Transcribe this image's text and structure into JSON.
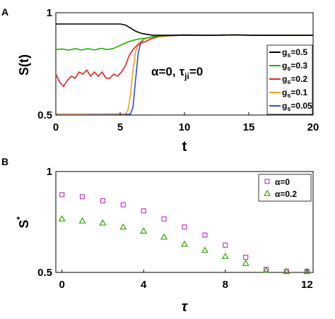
{
  "chart_data": [
    {
      "panel": "A",
      "type": "line",
      "xlabel": "t",
      "ylabel": "S(t)",
      "xlim": [
        0,
        20
      ],
      "ylim": [
        0.5,
        1
      ],
      "xticks": [
        "0",
        "5",
        "10",
        "15",
        "20"
      ],
      "yticks": [
        "0.5",
        "1"
      ],
      "annotation": "α=0, τji=0",
      "annotation_parts": {
        "alpha": "α=0,",
        "tau": "τ",
        "sub": "ji",
        "rest": "=0"
      },
      "legend_placement": "right",
      "series": [
        {
          "name": "gs=0.5",
          "label_main": "g",
          "label_sub": "s",
          "label_rest": "=0.5",
          "color": "#000000",
          "points": [
            [
              0,
              0.945
            ],
            [
              5.0,
              0.945
            ],
            [
              5.4,
              0.94
            ],
            [
              5.8,
              0.925
            ],
            [
              6.2,
              0.91
            ],
            [
              6.6,
              0.9
            ],
            [
              7.0,
              0.895
            ],
            [
              7.5,
              0.89
            ],
            [
              8,
              0.89
            ],
            [
              9,
              0.89
            ],
            [
              10,
              0.891
            ],
            [
              12,
              0.89
            ],
            [
              14,
              0.891
            ],
            [
              16,
              0.89
            ],
            [
              18,
              0.89
            ],
            [
              20,
              0.89
            ]
          ]
        },
        {
          "name": "gs=0.3",
          "label_main": "g",
          "label_sub": "s",
          "label_rest": "=0.3",
          "color": "#1fb000",
          "points": [
            [
              0,
              0.82
            ],
            [
              0.5,
              0.823
            ],
            [
              1,
              0.817
            ],
            [
              1.5,
              0.824
            ],
            [
              2,
              0.818
            ],
            [
              2.5,
              0.824
            ],
            [
              3,
              0.818
            ],
            [
              3.5,
              0.826
            ],
            [
              4,
              0.82
            ],
            [
              4.5,
              0.826
            ],
            [
              5.0,
              0.84
            ],
            [
              5.5,
              0.855
            ],
            [
              6.0,
              0.865
            ],
            [
              6.5,
              0.872
            ],
            [
              7.0,
              0.876
            ],
            [
              7.5,
              0.882
            ],
            [
              8,
              0.886
            ],
            [
              9,
              0.889
            ],
            [
              10,
              0.89
            ],
            [
              12,
              0.89
            ],
            [
              14,
              0.891
            ],
            [
              16,
              0.889
            ],
            [
              18,
              0.89
            ],
            [
              20,
              0.89
            ]
          ]
        },
        {
          "name": "gs=0.2",
          "label_main": "g",
          "label_sub": "s",
          "label_rest": "=0.2",
          "color": "#e81e1e",
          "points": [
            [
              0,
              0.7
            ],
            [
              0.3,
              0.66
            ],
            [
              0.6,
              0.64
            ],
            [
              0.9,
              0.67
            ],
            [
              1.2,
              0.69
            ],
            [
              1.5,
              0.68
            ],
            [
              1.8,
              0.71
            ],
            [
              2.1,
              0.7
            ],
            [
              2.4,
              0.72
            ],
            [
              2.7,
              0.69
            ],
            [
              3.0,
              0.71
            ],
            [
              3.3,
              0.69
            ],
            [
              3.6,
              0.71
            ],
            [
              3.9,
              0.68
            ],
            [
              4.2,
              0.68
            ],
            [
              4.5,
              0.7
            ],
            [
              4.8,
              0.69
            ],
            [
              5.1,
              0.71
            ],
            [
              5.4,
              0.74
            ],
            [
              5.7,
              0.79
            ],
            [
              6.0,
              0.82
            ],
            [
              6.3,
              0.84
            ],
            [
              6.6,
              0.85
            ],
            [
              7.0,
              0.86
            ],
            [
              7.5,
              0.875
            ],
            [
              8,
              0.883
            ],
            [
              9,
              0.888
            ],
            [
              10,
              0.89
            ],
            [
              12,
              0.89
            ],
            [
              14,
              0.891
            ],
            [
              16,
              0.889
            ],
            [
              18,
              0.89
            ],
            [
              20,
              0.89
            ]
          ]
        },
        {
          "name": "gs=0.1",
          "label_main": "g",
          "label_sub": "s",
          "label_rest": "=0.1",
          "color": "#f2a11c",
          "points": [
            [
              0,
              0.505
            ],
            [
              2,
              0.505
            ],
            [
              4,
              0.506
            ],
            [
              5.4,
              0.506
            ],
            [
              5.6,
              0.52
            ],
            [
              5.8,
              0.6
            ],
            [
              6.0,
              0.72
            ],
            [
              6.2,
              0.81
            ],
            [
              6.4,
              0.85
            ],
            [
              6.8,
              0.87
            ],
            [
              7.5,
              0.882
            ],
            [
              8.5,
              0.887
            ],
            [
              10,
              0.89
            ],
            [
              12,
              0.89
            ],
            [
              14,
              0.891
            ],
            [
              16,
              0.889
            ],
            [
              18,
              0.89
            ],
            [
              20,
              0.89
            ]
          ]
        },
        {
          "name": "gs=0.05",
          "label_main": "g",
          "label_sub": "s",
          "label_rest": "=0.05",
          "color": "#2f47e0",
          "points": [
            [
              0,
              0.503
            ],
            [
              2,
              0.503
            ],
            [
              4,
              0.503
            ],
            [
              5.8,
              0.504
            ],
            [
              6.0,
              0.54
            ],
            [
              6.2,
              0.67
            ],
            [
              6.4,
              0.8
            ],
            [
              6.6,
              0.855
            ],
            [
              6.9,
              0.872
            ],
            [
              7.5,
              0.882
            ],
            [
              8.5,
              0.887
            ],
            [
              10,
              0.89
            ],
            [
              12,
              0.89
            ],
            [
              14,
              0.891
            ],
            [
              16,
              0.889
            ],
            [
              18,
              0.89
            ],
            [
              20,
              0.89
            ]
          ]
        }
      ]
    },
    {
      "panel": "B",
      "type": "scatter",
      "xlabel": "τ",
      "ylabel": "S*",
      "ylabel_main": "S",
      "ylabel_sup": "*",
      "xlim": [
        -0.3,
        12.3
      ],
      "ylim": [
        0.5,
        1
      ],
      "xticks": [
        "0",
        "4",
        "8",
        "12"
      ],
      "yticks": [
        "0.5",
        "1"
      ],
      "legend_placement": "top-right",
      "series": [
        {
          "name": "α=0",
          "marker": "square",
          "color": "#c040c0",
          "x": [
            0,
            1,
            2,
            3,
            4,
            5,
            6,
            7,
            8,
            9,
            10,
            11,
            12
          ],
          "y": [
            0.885,
            0.875,
            0.855,
            0.835,
            0.805,
            0.765,
            0.725,
            0.685,
            0.635,
            0.575,
            0.515,
            0.505,
            0.505
          ]
        },
        {
          "name": "α=0.2",
          "marker": "triangle",
          "color": "#3aa00a",
          "x": [
            0,
            1,
            2,
            3,
            4,
            5,
            6,
            7,
            8,
            9,
            10,
            11,
            12
          ],
          "y": [
            0.765,
            0.755,
            0.745,
            0.725,
            0.705,
            0.675,
            0.64,
            0.61,
            0.58,
            0.545,
            0.51,
            0.505,
            0.505
          ]
        }
      ]
    }
  ]
}
